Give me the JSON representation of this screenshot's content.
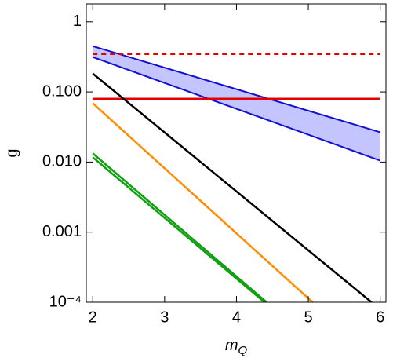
{
  "chart_data": {
    "type": "line",
    "x_label": "m",
    "x_label_sub": "Q",
    "y_label": "g",
    "xlim": [
      1.91,
      6.08
    ],
    "xticks": [
      2,
      3,
      4,
      5,
      6
    ],
    "ylim": [
      0.0001,
      1.8
    ],
    "log_y": true,
    "yticks": [
      1,
      {
        "value": 0.1,
        "label": "0.100"
      },
      {
        "value": 0.01,
        "label": "0.010"
      },
      {
        "value": 0.001,
        "label": "0.001"
      },
      {
        "value": 0.0001,
        "label": "10⁻⁴"
      }
    ],
    "series": [
      {
        "color": "#e00000",
        "dash": true,
        "x": [
          2,
          6
        ],
        "values": [
          0.348,
          0.348
        ]
      },
      {
        "color": "#e00000",
        "dash": false,
        "x": [
          2,
          6
        ],
        "values": [
          0.08,
          0.08
        ]
      },
      {
        "color": "#000000",
        "dash": false,
        "x": [
          2,
          5.88
        ],
        "values": [
          0.183,
          0.0001
        ]
      },
      {
        "color": "#ff8c00",
        "dash": false,
        "x": [
          2,
          5.06
        ],
        "values": [
          0.069,
          0.0001
        ]
      },
      {
        "color": "#10a010",
        "dash": false,
        "x": [
          2,
          4.42
        ],
        "values": [
          0.0133,
          0.0001
        ]
      },
      {
        "color": "#10a010",
        "dash": false,
        "x": [
          2,
          4.39
        ],
        "values": [
          0.0117,
          0.0001
        ]
      }
    ],
    "bands": [
      {
        "color": "#1010d0",
        "fill": "#c4c4ff",
        "x": [
          2,
          6
        ],
        "upper": [
          0.45,
          0.0266
        ],
        "lower": [
          0.314,
          0.0105
        ]
      }
    ]
  }
}
